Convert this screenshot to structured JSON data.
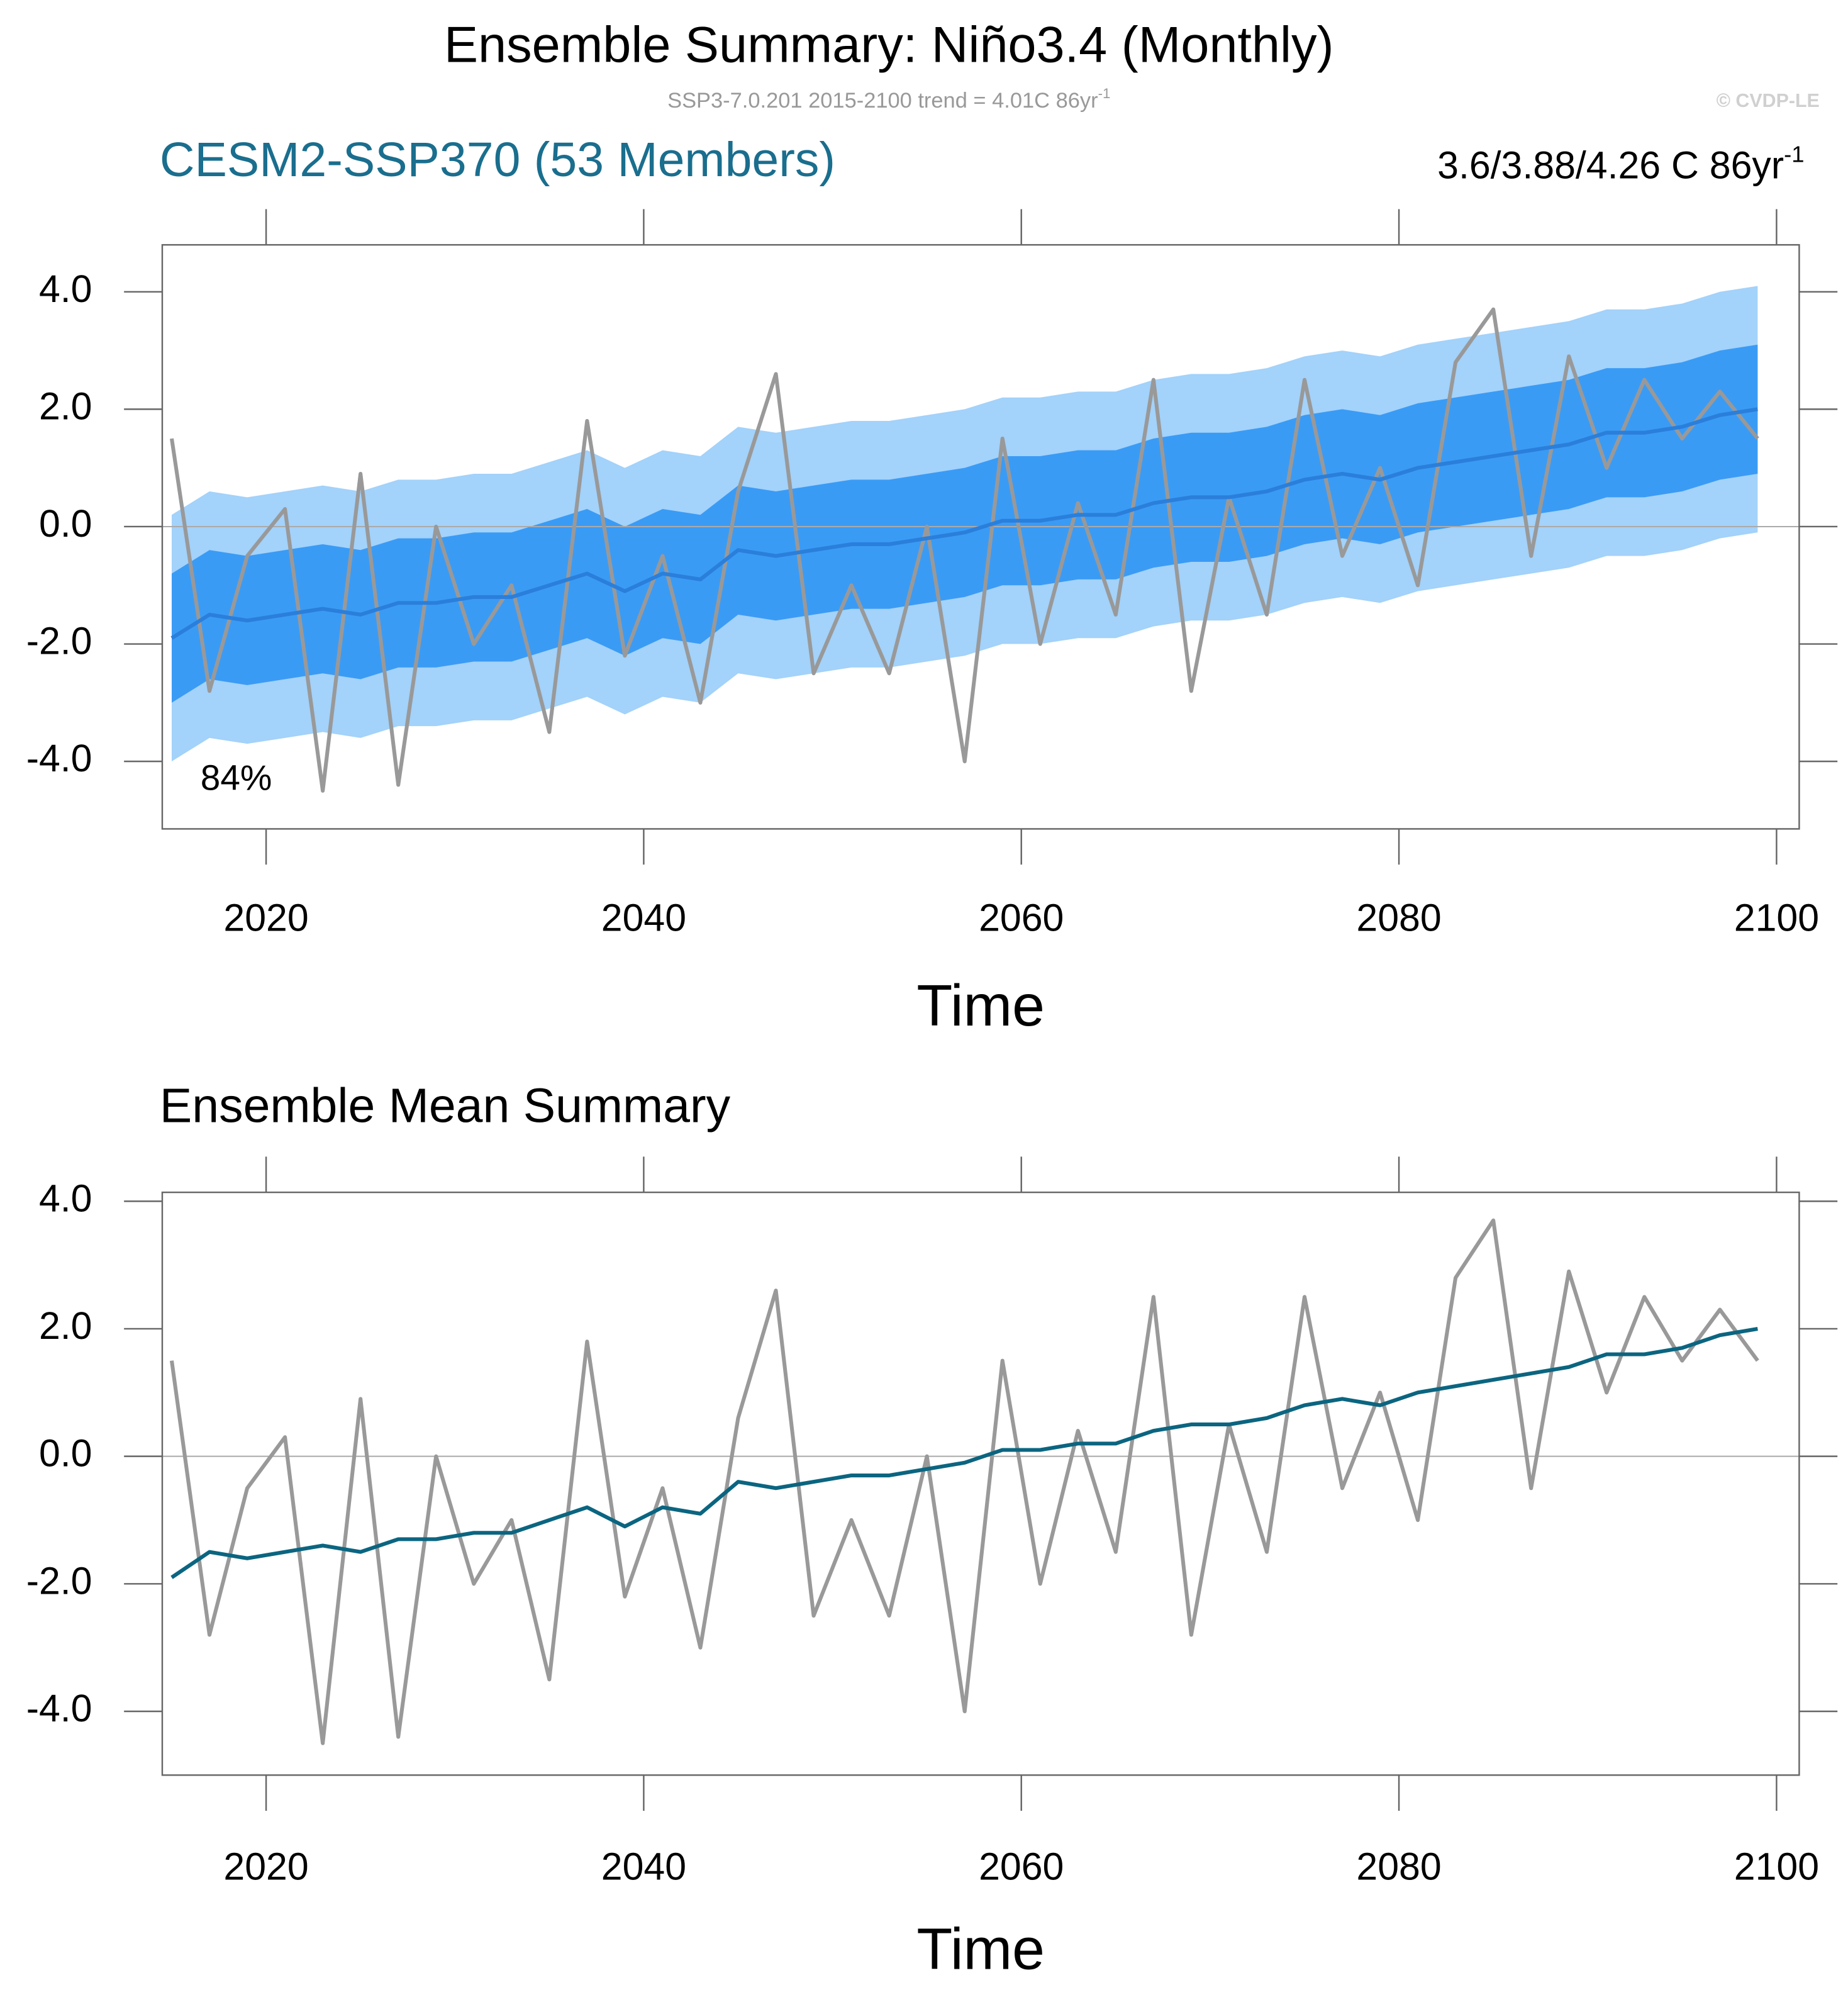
{
  "title": "Ensemble Summary: Niño3.4 (Monthly)",
  "subtitle": "SSP3-7.0.201 2015-2100 trend = 4.01C 86yr",
  "subtitle_sup": "-1",
  "credit": "© CVDP-LE",
  "chart_data": [
    {
      "type": "band-line",
      "title": "CESM2-SSP370 (53 Members)",
      "title_color": "#1a6e8e",
      "title_right": "3.6/3.88/4.26 C 86yr",
      "title_right_sup": "-1",
      "annotation": "84%",
      "x_label": "Time",
      "x": [
        2015,
        2017,
        2019,
        2021,
        2023,
        2025,
        2027,
        2029,
        2031,
        2033,
        2035,
        2037,
        2039,
        2041,
        2043,
        2045,
        2047,
        2049,
        2051,
        2053,
        2055,
        2057,
        2059,
        2061,
        2063,
        2065,
        2067,
        2069,
        2071,
        2073,
        2075,
        2077,
        2079,
        2081,
        2083,
        2085,
        2087,
        2089,
        2091,
        2093,
        2095,
        2097,
        2099
      ],
      "xlim": [
        2014.5,
        2101.2
      ],
      "xticks": [
        2020,
        2040,
        2060,
        2080,
        2100
      ],
      "ylim": [
        -5.15,
        4.8
      ],
      "yticks": [
        {
          "value": -4,
          "label": "-4.0"
        },
        {
          "value": -2,
          "label": "-2.0"
        },
        {
          "value": 0,
          "label": "0.0"
        },
        {
          "value": 2,
          "label": "2.0"
        },
        {
          "value": 4,
          "label": "4.0"
        }
      ],
      "zero_line": true,
      "bands": [
        {
          "color": "#a3d2fa",
          "lower": [
            -4.0,
            -3.6,
            -3.7,
            -3.6,
            -3.5,
            -3.6,
            -3.4,
            -3.4,
            -3.3,
            -3.3,
            -3.1,
            -2.9,
            -3.2,
            -2.9,
            -3.0,
            -2.5,
            -2.6,
            -2.5,
            -2.4,
            -2.4,
            -2.3,
            -2.2,
            -2.0,
            -2.0,
            -1.9,
            -1.9,
            -1.7,
            -1.6,
            -1.6,
            -1.5,
            -1.3,
            -1.2,
            -1.3,
            -1.1,
            -1.0,
            -0.9,
            -0.8,
            -0.7,
            -0.5,
            -0.5,
            -0.4,
            -0.2,
            -0.1
          ],
          "upper": [
            0.2,
            0.6,
            0.5,
            0.6,
            0.7,
            0.6,
            0.8,
            0.8,
            0.9,
            0.9,
            1.1,
            1.3,
            1.0,
            1.3,
            1.2,
            1.7,
            1.6,
            1.7,
            1.8,
            1.8,
            1.9,
            2.0,
            2.2,
            2.2,
            2.3,
            2.3,
            2.5,
            2.6,
            2.6,
            2.7,
            2.9,
            3.0,
            2.9,
            3.1,
            3.2,
            3.3,
            3.4,
            3.5,
            3.7,
            3.7,
            3.8,
            4.0,
            4.1
          ]
        },
        {
          "color": "#3a9bf5",
          "lower": [
            -3.0,
            -2.6,
            -2.7,
            -2.6,
            -2.5,
            -2.6,
            -2.4,
            -2.4,
            -2.3,
            -2.3,
            -2.1,
            -1.9,
            -2.2,
            -1.9,
            -2.0,
            -1.5,
            -1.6,
            -1.5,
            -1.4,
            -1.4,
            -1.3,
            -1.2,
            -1.0,
            -1.0,
            -0.9,
            -0.9,
            -0.7,
            -0.6,
            -0.6,
            -0.5,
            -0.3,
            -0.2,
            -0.3,
            -0.1,
            0.0,
            0.1,
            0.2,
            0.3,
            0.5,
            0.5,
            0.6,
            0.8,
            0.9
          ],
          "upper": [
            -0.8,
            -0.4,
            -0.5,
            -0.4,
            -0.3,
            -0.4,
            -0.2,
            -0.2,
            -0.1,
            -0.1,
            0.1,
            0.3,
            0.0,
            0.3,
            0.2,
            0.7,
            0.6,
            0.7,
            0.8,
            0.8,
            0.9,
            1.0,
            1.2,
            1.2,
            1.3,
            1.3,
            1.5,
            1.6,
            1.6,
            1.7,
            1.9,
            2.0,
            1.9,
            2.1,
            2.2,
            2.3,
            2.4,
            2.5,
            2.7,
            2.7,
            2.8,
            3.0,
            3.1
          ]
        }
      ],
      "series": [
        {
          "color": "#999999",
          "values": [
            1.5,
            -2.8,
            -0.5,
            0.3,
            -4.5,
            0.9,
            -4.4,
            0.0,
            -2.0,
            -1.0,
            -3.5,
            1.8,
            -2.2,
            -0.5,
            -3.0,
            0.6,
            2.6,
            -2.5,
            -1.0,
            -2.5,
            0.0,
            -4.0,
            1.5,
            -2.0,
            0.4,
            -1.5,
            2.5,
            -2.8,
            0.5,
            -1.5,
            2.5,
            -0.5,
            1.0,
            -1.0,
            2.8,
            3.7,
            -0.5,
            2.9,
            1.0,
            2.5,
            1.5,
            2.3,
            1.5
          ]
        },
        {
          "color": "#2a7fdb",
          "values": [
            -1.9,
            -1.5,
            -1.6,
            -1.5,
            -1.4,
            -1.5,
            -1.3,
            -1.3,
            -1.2,
            -1.2,
            -1.0,
            -0.8,
            -1.1,
            -0.8,
            -0.9,
            -0.4,
            -0.5,
            -0.4,
            -0.3,
            -0.3,
            -0.2,
            -0.1,
            0.1,
            0.1,
            0.2,
            0.2,
            0.4,
            0.5,
            0.5,
            0.6,
            0.8,
            0.9,
            0.8,
            1.0,
            1.1,
            1.2,
            1.3,
            1.4,
            1.6,
            1.6,
            1.7,
            1.9,
            2.0
          ]
        }
      ]
    },
    {
      "type": "line",
      "title": "Ensemble Mean Summary",
      "title_color": "#000000",
      "x_label": "Time",
      "x": [
        2015,
        2017,
        2019,
        2021,
        2023,
        2025,
        2027,
        2029,
        2031,
        2033,
        2035,
        2037,
        2039,
        2041,
        2043,
        2045,
        2047,
        2049,
        2051,
        2053,
        2055,
        2057,
        2059,
        2061,
        2063,
        2065,
        2067,
        2069,
        2071,
        2073,
        2075,
        2077,
        2079,
        2081,
        2083,
        2085,
        2087,
        2089,
        2091,
        2093,
        2095,
        2097,
        2099
      ],
      "xlim": [
        2014.5,
        2101.2
      ],
      "xticks": [
        2020,
        2040,
        2060,
        2080,
        2100
      ],
      "ylim": [
        -5.0,
        4.14
      ],
      "yticks": [
        {
          "value": -4,
          "label": "-4.0"
        },
        {
          "value": -2,
          "label": "-2.0"
        },
        {
          "value": 0,
          "label": "0.0"
        },
        {
          "value": 2,
          "label": "2.0"
        },
        {
          "value": 4,
          "label": "4.0"
        }
      ],
      "zero_line": true,
      "series": [
        {
          "color": "#999999",
          "values": [
            1.5,
            -2.8,
            -0.5,
            0.3,
            -4.5,
            0.9,
            -4.4,
            0.0,
            -2.0,
            -1.0,
            -3.5,
            1.8,
            -2.2,
            -0.5,
            -3.0,
            0.6,
            2.6,
            -2.5,
            -1.0,
            -2.5,
            0.0,
            -4.0,
            1.5,
            -2.0,
            0.4,
            -1.5,
            2.5,
            -2.8,
            0.5,
            -1.5,
            2.5,
            -0.5,
            1.0,
            -1.0,
            2.8,
            3.7,
            -0.5,
            2.9,
            1.0,
            2.5,
            1.5,
            2.3,
            1.5
          ]
        },
        {
          "color": "#0b6580",
          "values": [
            -1.9,
            -1.5,
            -1.6,
            -1.5,
            -1.4,
            -1.5,
            -1.3,
            -1.3,
            -1.2,
            -1.2,
            -1.0,
            -0.8,
            -1.1,
            -0.8,
            -0.9,
            -0.4,
            -0.5,
            -0.4,
            -0.3,
            -0.3,
            -0.2,
            -0.1,
            0.1,
            0.1,
            0.2,
            0.2,
            0.4,
            0.5,
            0.5,
            0.6,
            0.8,
            0.9,
            0.8,
            1.0,
            1.1,
            1.2,
            1.3,
            1.4,
            1.6,
            1.6,
            1.7,
            1.9,
            2.0
          ]
        }
      ]
    }
  ]
}
